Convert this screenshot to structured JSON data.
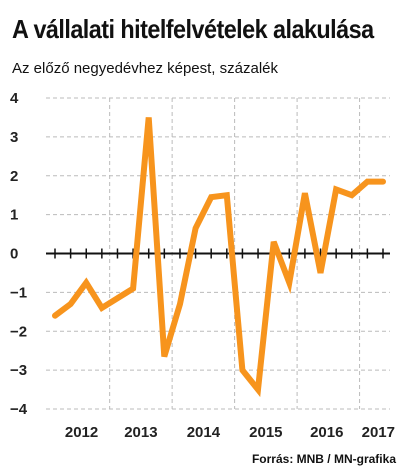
{
  "title": "A vállalati hitelfelvételek alakulása",
  "subtitle": "Az előző negyedévhez képest, százalék",
  "source": "Forrás: MNB / MN-grafika",
  "colors": {
    "line": "#F7941D",
    "grid": "#BBBBBB",
    "axis": "#111111",
    "text": "#222222"
  },
  "chart_data": {
    "type": "line",
    "title": "A vállalati hitelfelvételek alakulása",
    "subtitle": "Az előző negyedévhez képest, százalék",
    "xlabel": "",
    "ylabel": "",
    "ylim": [
      -4,
      4
    ],
    "yticks": [
      -4,
      -3,
      -2,
      -1,
      0,
      1,
      2,
      3,
      4
    ],
    "xticks": [
      "2012",
      "2013",
      "2014",
      "2015",
      "2016",
      "2017"
    ],
    "grid": true,
    "x": [
      "2012 Q1",
      "2012 Q2",
      "2012 Q3",
      "2012 Q4",
      "2013 Q1",
      "2013 Q2",
      "2013 Q3",
      "2013 Q4",
      "2014 Q1",
      "2014 Q2",
      "2014 Q3",
      "2014 Q4",
      "2015 Q1",
      "2015 Q2",
      "2015 Q3",
      "2015 Q4",
      "2016 Q1",
      "2016 Q2",
      "2016 Q3",
      "2016 Q4",
      "2017 Q1",
      "2017 Q2"
    ],
    "series": [
      {
        "values": [
          -1.6,
          -1.3,
          -0.75,
          -1.4,
          -1.15,
          -0.9,
          3.5,
          -2.65,
          -1.3,
          0.65,
          1.45,
          1.5,
          -3.0,
          -3.5,
          0.3,
          -0.75,
          1.55,
          -0.5,
          1.65,
          1.5,
          1.85,
          1.85
        ]
      }
    ]
  }
}
